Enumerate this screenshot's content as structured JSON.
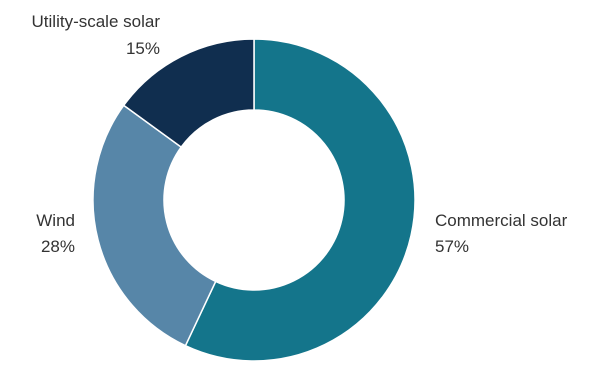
{
  "chart_data": {
    "type": "pie",
    "donut": true,
    "categories": [
      "Commercial solar",
      "Wind",
      "Utility-scale solar"
    ],
    "values": [
      57,
      28,
      15
    ],
    "value_labels": [
      "57%",
      "28%",
      "15%"
    ],
    "colors": [
      "#14758b",
      "#5786a8",
      "#102e4f"
    ],
    "title": "",
    "legend": "none (direct labels)"
  }
}
